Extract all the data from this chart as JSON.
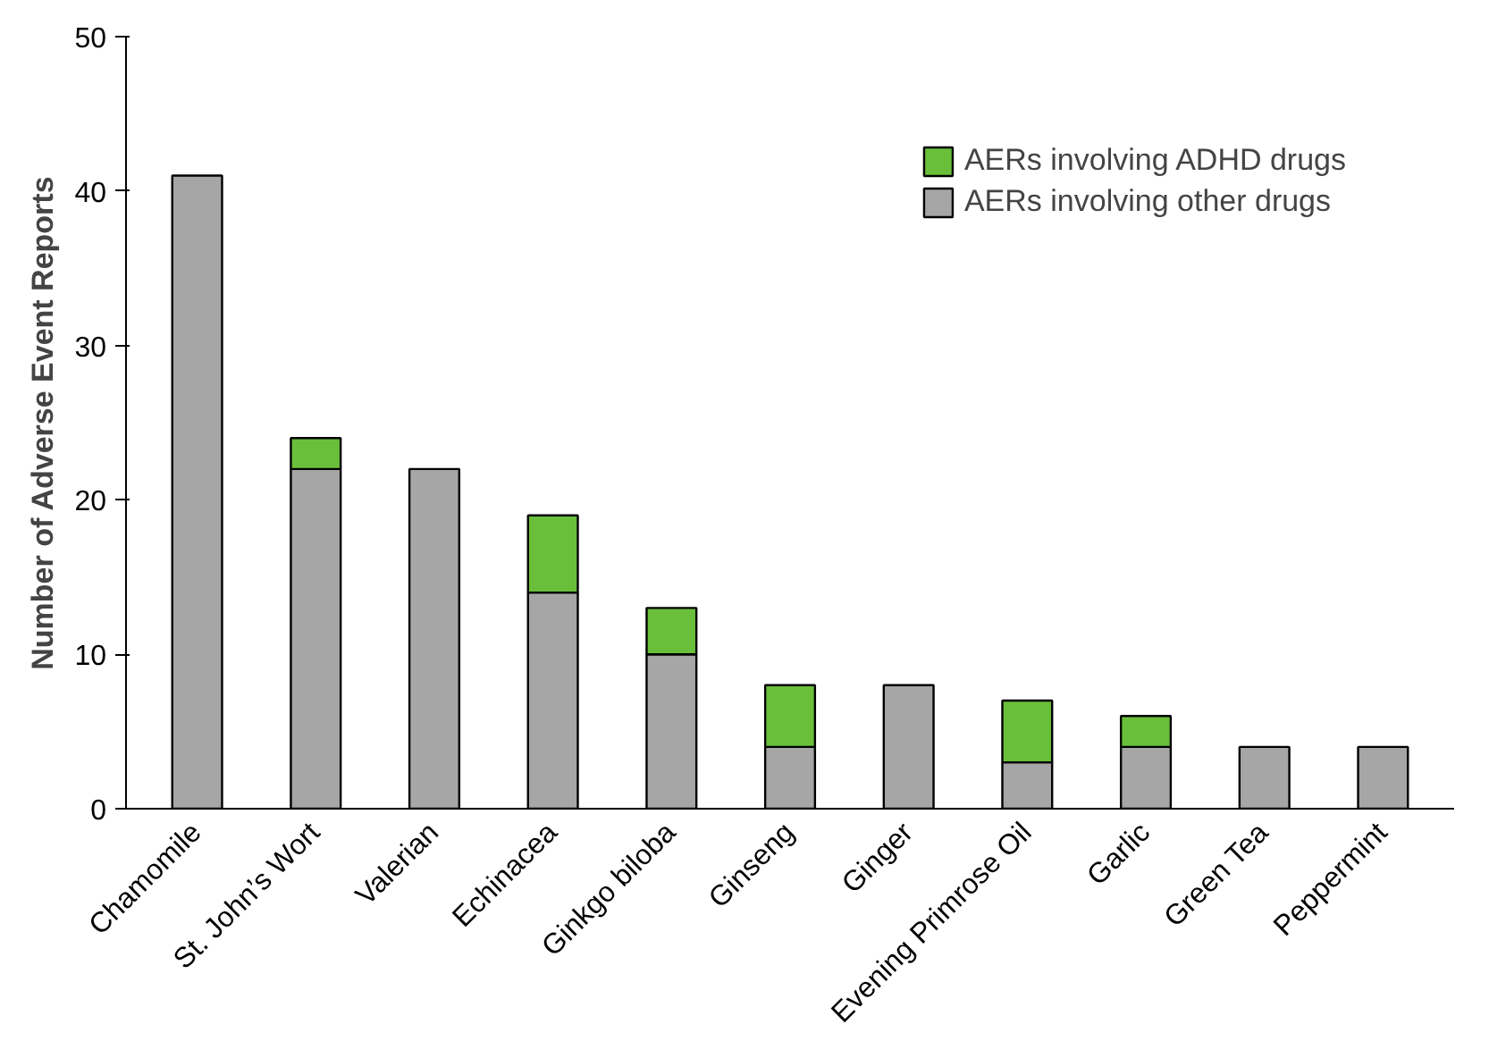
{
  "chart_data": {
    "type": "bar",
    "stacked": true,
    "ylabel": "Number of Adverse Event Reports",
    "categories": [
      "Chamomile",
      "St. John’s Wort",
      "Valerian",
      "Echinacea",
      "Ginkgo biloba",
      "Ginseng",
      "Ginger",
      "Evening Primrose Oil",
      "Garlic",
      "Green Tea",
      "Peppermint"
    ],
    "series": [
      {
        "name": "AERs involving other drugs",
        "color": "#a6a6a6",
        "values": [
          41,
          22,
          22,
          14,
          10,
          4,
          8,
          3,
          4,
          4,
          4
        ]
      },
      {
        "name": "AERs involving ADHD drugs",
        "color": "#6abf3a",
        "values": [
          null,
          2,
          null,
          5,
          3,
          4,
          null,
          4,
          2,
          null,
          null
        ]
      }
    ],
    "ylim": [
      0,
      50
    ],
    "yticks": [
      0,
      10,
      20,
      30,
      40,
      50
    ],
    "grid": false,
    "legend": "top right"
  }
}
